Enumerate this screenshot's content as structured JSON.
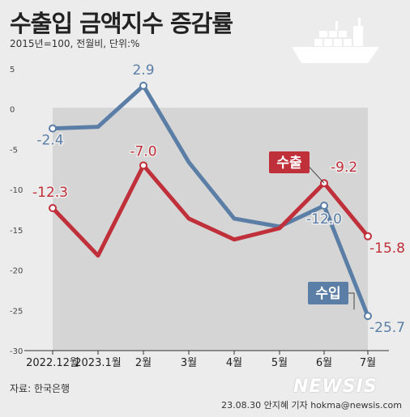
{
  "header": {
    "title": "수출입 금액지수 증감률",
    "subtitle": "2015년=100, 전월비, 단위:%"
  },
  "footer": {
    "source": "자료: 한국은행",
    "credit": "23.08.30 안지혜 기자 hokma@newsis.com",
    "logo": "NEWSIS"
  },
  "colors": {
    "export": "#c0303a",
    "import": "#5b7ea6",
    "background": "#ececec",
    "plot_area": "#d5d5d5"
  },
  "chart_data": {
    "type": "line",
    "categories": [
      "2022.12월",
      "2023.1월",
      "2월",
      "3월",
      "4월",
      "5월",
      "6월",
      "7월"
    ],
    "ylim": [
      -30,
      5
    ],
    "yticks": [
      5,
      0,
      -5,
      -10,
      -15,
      -20,
      -25,
      -30
    ],
    "grid": false,
    "series": [
      {
        "name": "수출",
        "values": [
          -12.3,
          -18.2,
          -7.0,
          -13.6,
          -16.2,
          -14.8,
          -9.2,
          -15.8
        ],
        "labels": [
          "-12.3",
          null,
          "-7.0",
          null,
          null,
          null,
          "-9.2",
          "-15.8"
        ]
      },
      {
        "name": "수입",
        "values": [
          -2.4,
          -2.2,
          2.9,
          -6.6,
          -13.6,
          -14.6,
          -12.0,
          -25.7
        ],
        "labels": [
          "-2.4",
          null,
          "2.9",
          null,
          null,
          null,
          "-12.0",
          "-25.7"
        ]
      }
    ]
  }
}
